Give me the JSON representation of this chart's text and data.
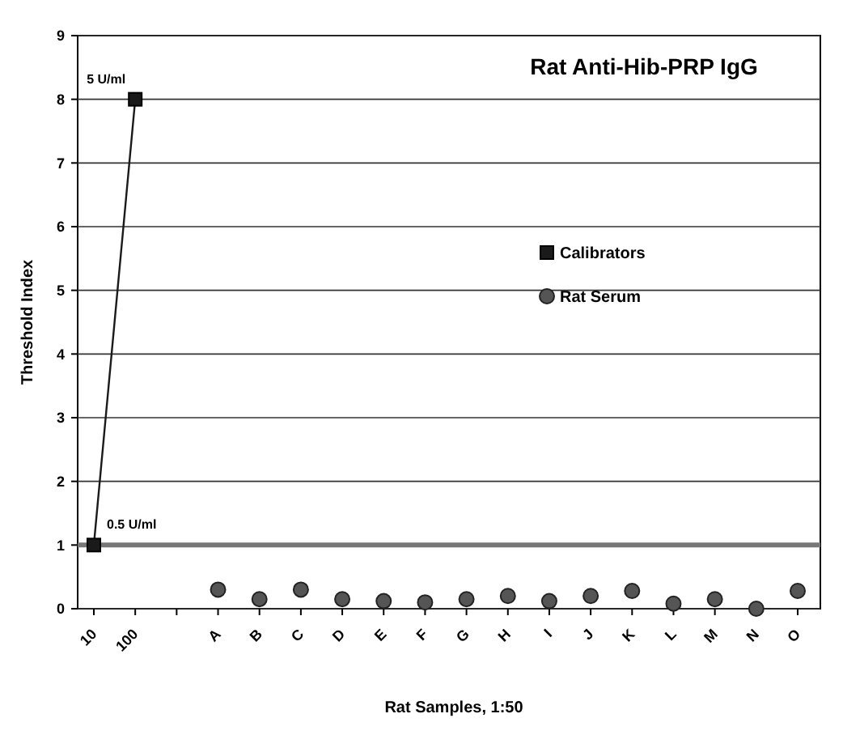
{
  "chart_data": {
    "type": "line",
    "title": "Rat Anti-Hib-PRP IgG",
    "xlabel": "Rat Samples, 1:50",
    "ylabel": "Threshold Index",
    "categories": [
      "10",
      "100",
      null,
      "A",
      "B",
      "C",
      "D",
      "E",
      "F",
      "G",
      "H",
      "I",
      "J",
      "K",
      "L",
      "M",
      "N",
      "O"
    ],
    "series": [
      {
        "name": "Calibrators",
        "color": "#1a1a1a",
        "marker": "square",
        "values": [
          1,
          8,
          null,
          null,
          null,
          null,
          null,
          null,
          null,
          null,
          null,
          null,
          null,
          null,
          null,
          null,
          null,
          null
        ]
      },
      {
        "name": "Rat Serum",
        "type": "scatter",
        "color": "#555555",
        "marker": "circle",
        "values": [
          null,
          null,
          null,
          0.3,
          0.15,
          0.3,
          0.15,
          0.12,
          0.1,
          0.15,
          0.2,
          0.12,
          0.2,
          0.28,
          0.08,
          0.15,
          0,
          0.28
        ]
      }
    ],
    "annotations": [
      {
        "text": "5 U/ml",
        "x": "100",
        "y": 8
      },
      {
        "text": "0.5 U/ml",
        "x": "10",
        "y": 1
      }
    ],
    "ref_lines": [
      {
        "axis": "y",
        "value": 1,
        "color": "#777777"
      }
    ],
    "ylim": [
      0,
      9
    ],
    "yticks": [
      0,
      1,
      2,
      3,
      4,
      5,
      6,
      7,
      8,
      9
    ],
    "grid": "y",
    "legend": "right"
  }
}
